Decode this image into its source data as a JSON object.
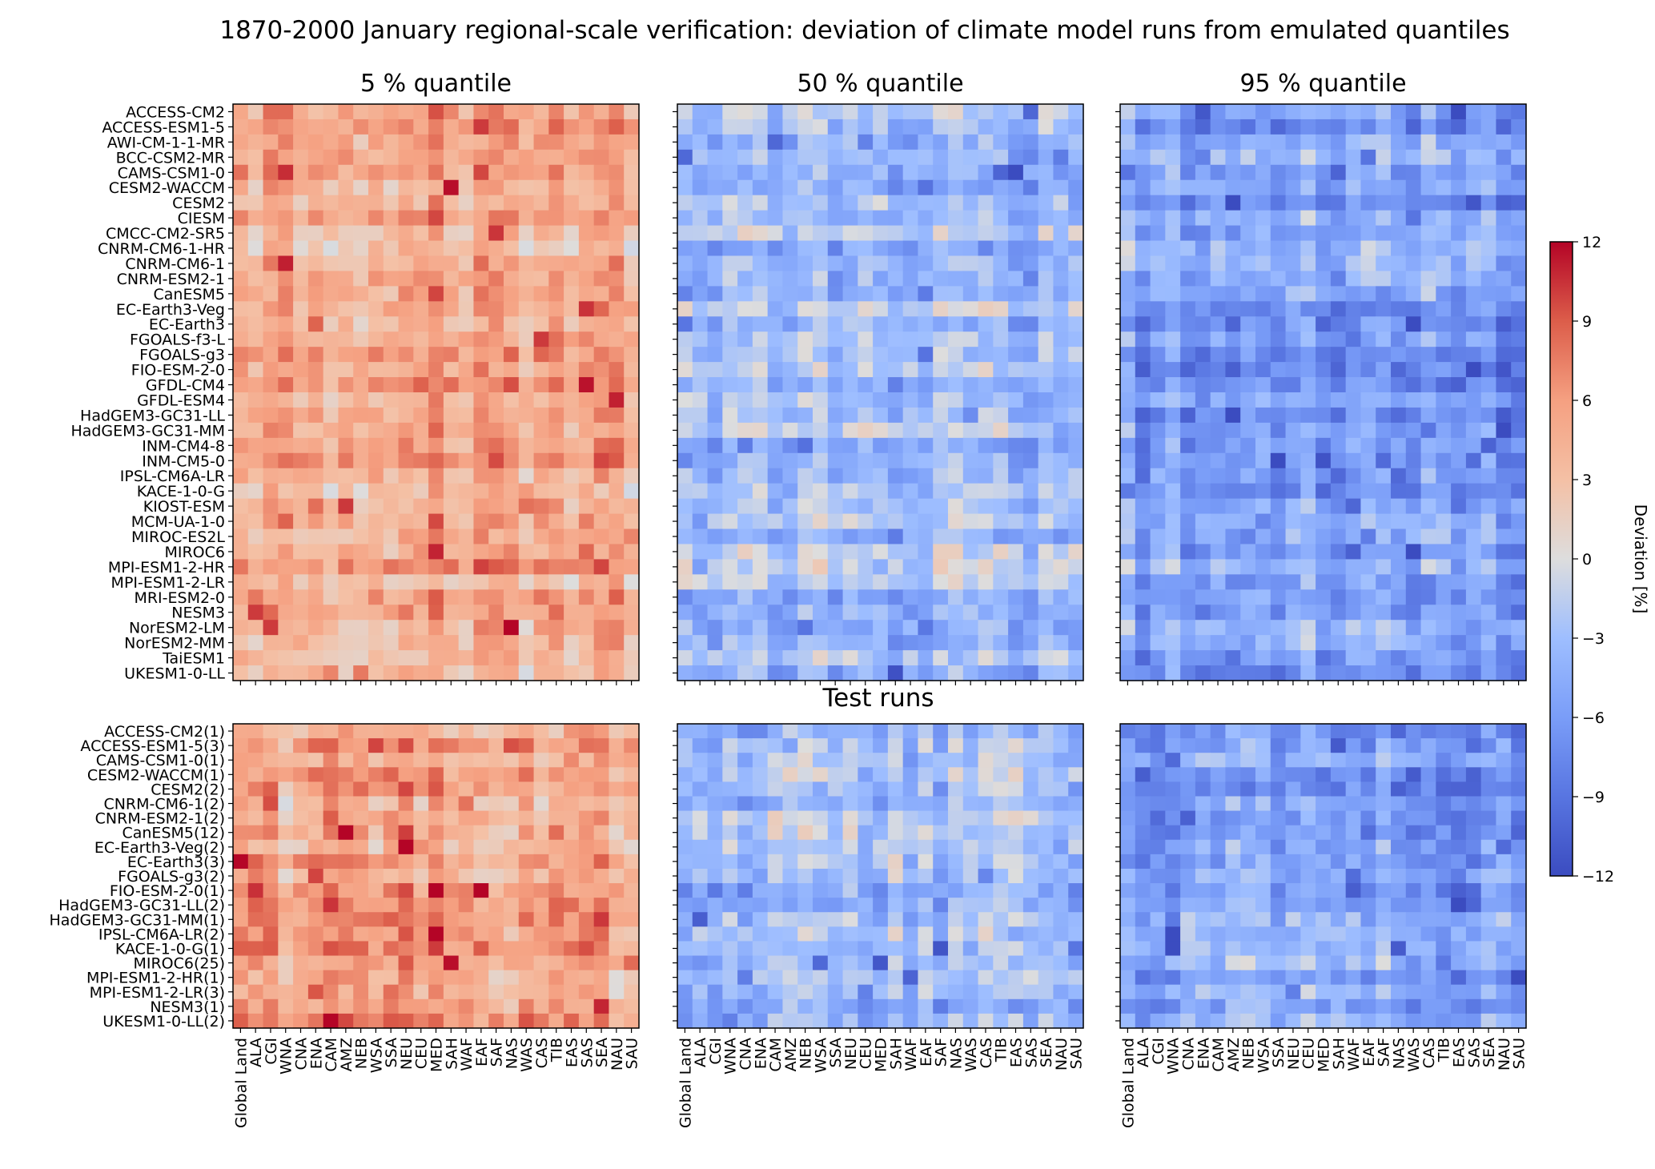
{
  "figure": {
    "title": "1870-2000 January regional-scale verification: deviation of climate model runs from emulated quantiles",
    "section_label": "Test runs"
  },
  "chart_data": {
    "type": "heatmap",
    "panel_titles": [
      "5 % quantile",
      "50 % quantile",
      "95 % quantile"
    ],
    "regions": [
      "Global Land",
      "ALA",
      "CGI",
      "WNA",
      "CNA",
      "ENA",
      "CAM",
      "AMZ",
      "NEB",
      "WSA",
      "SSA",
      "NEU",
      "CEU",
      "MED",
      "SAH",
      "WAF",
      "EAF",
      "SAF",
      "NAS",
      "WAS",
      "CAS",
      "TIB",
      "EAS",
      "SAS",
      "SEA",
      "NAU",
      "SAU"
    ],
    "models_top": [
      "ACCESS-CM2",
      "ACCESS-ESM1-5",
      "AWI-CM-1-1-MR",
      "BCC-CSM2-MR",
      "CAMS-CSM1-0",
      "CESM2-WACCM",
      "CESM2",
      "CIESM",
      "CMCC-CM2-SR5",
      "CNRM-CM6-1-HR",
      "CNRM-CM6-1",
      "CNRM-ESM2-1",
      "CanESM5",
      "EC-Earth3-Veg",
      "EC-Earth3",
      "FGOALS-f3-L",
      "FGOALS-g3",
      "FIO-ESM-2-0",
      "GFDL-CM4",
      "GFDL-ESM4",
      "HadGEM3-GC31-LL",
      "HadGEM3-GC31-MM",
      "INM-CM4-8",
      "INM-CM5-0",
      "IPSL-CM6A-LR",
      "KACE-1-0-G",
      "KIOST-ESM",
      "MCM-UA-1-0",
      "MIROC-ES2L",
      "MIROC6",
      "MPI-ESM1-2-HR",
      "MPI-ESM1-2-LR",
      "MRI-ESM2-0",
      "NESM3",
      "NorESM2-LM",
      "NorESM2-MM",
      "TaiESM1",
      "UKESM1-0-LL"
    ],
    "models_test": [
      "ACCESS-CM2(1)",
      "ACCESS-ESM1-5(3)",
      "CAMS-CSM1-0(1)",
      "CESM2-WACCM(1)",
      "CESM2(2)",
      "CNRM-CM6-1(2)",
      "CNRM-ESM2-1(2)",
      "CanESM5(12)",
      "EC-Earth3-Veg(2)",
      "EC-Earth3(3)",
      "FGOALS-g3(2)",
      "FIO-ESM-2-0(1)",
      "HadGEM3-GC31-LL(2)",
      "HadGEM3-GC31-MM(1)",
      "IPSL-CM6A-LR(2)",
      "KACE-1-0-G(1)",
      "MIROC6(25)",
      "MPI-ESM1-2-HR(1)",
      "MPI-ESM1-2-LR(3)",
      "NESM3(1)",
      "UKESM1-0-LL(2)"
    ],
    "panel_means": [
      5.0,
      -3.0,
      -5.5
    ],
    "value_range": [
      -12,
      12
    ],
    "colormap": "coolwarm",
    "colorbar": {
      "label": "Deviation [%]",
      "ticks": [
        12,
        9,
        6,
        3,
        0,
        -3,
        -6,
        -9,
        -12
      ],
      "tick_labels": [
        "12",
        "9",
        "6",
        "3",
        "0",
        "−3",
        "−6",
        "−9",
        "−12"
      ]
    },
    "colors": {
      "cold": "#3b4cc0",
      "neutral": "#dddddd",
      "warm": "#b40426"
    }
  }
}
